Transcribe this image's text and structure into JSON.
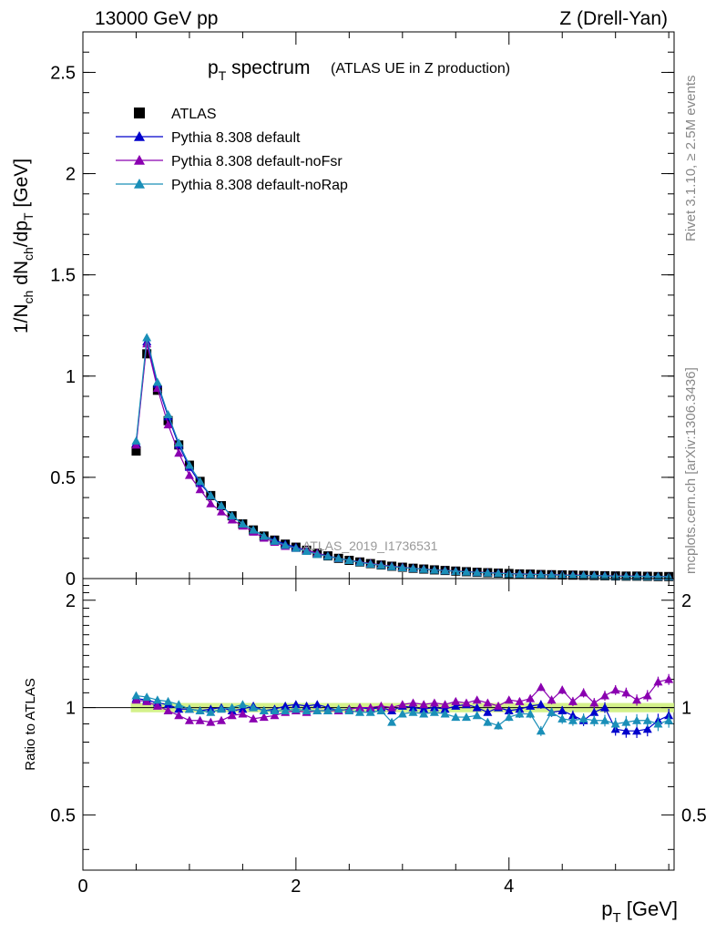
{
  "header": {
    "energy": "13000 GeV pp",
    "process": "Z (Drell-Yan)"
  },
  "side_labels": {
    "rivet": "Rivet 3.1.10, ≥ 2.5M events",
    "mcplots": "mcplots.cern.ch [arXiv:1306.3436]"
  },
  "chart_data": [
    {
      "type": "scatter",
      "panel": "main",
      "title_main": "p",
      "title_sub": "T",
      "title_rest": " spectrum",
      "title_paren": "(ATLAS UE in Z production)",
      "analysis_tag": "ATLAS_2019_I1736531",
      "ylabel": "1/N_ch dN_ch/dp_T [GeV]",
      "xlim": [
        0,
        5.55
      ],
      "ylim": [
        0,
        2.7
      ],
      "yticks": [
        "0",
        "0.5",
        "1",
        "1.5",
        "2",
        "2.5"
      ],
      "ytick_values": [
        0,
        0.5,
        1,
        1.5,
        2,
        2.5
      ],
      "grid": false,
      "legend_position": "top-left",
      "x": [
        0.5,
        0.6,
        0.7,
        0.8,
        0.9,
        1.0,
        1.1,
        1.2,
        1.3,
        1.4,
        1.5,
        1.6,
        1.7,
        1.8,
        1.9,
        2.0,
        2.1,
        2.2,
        2.3,
        2.4,
        2.5,
        2.6,
        2.7,
        2.8,
        2.9,
        3.0,
        3.1,
        3.2,
        3.3,
        3.4,
        3.5,
        3.6,
        3.7,
        3.8,
        3.9,
        4.0,
        4.1,
        4.2,
        4.3,
        4.4,
        4.5,
        4.6,
        4.7,
        4.8,
        4.9,
        5.0,
        5.1,
        5.2,
        5.3,
        5.4,
        5.5
      ],
      "series": [
        {
          "name": "ATLAS",
          "color": "#000000",
          "marker": "square",
          "values": [
            0.63,
            1.11,
            0.93,
            0.78,
            0.66,
            0.56,
            0.48,
            0.41,
            0.36,
            0.31,
            0.27,
            0.24,
            0.21,
            0.19,
            0.17,
            0.155,
            0.14,
            0.125,
            0.112,
            0.1,
            0.09,
            0.082,
            0.074,
            0.067,
            0.061,
            0.056,
            0.051,
            0.047,
            0.043,
            0.04,
            0.037,
            0.034,
            0.031,
            0.029,
            0.027,
            0.025,
            0.023,
            0.022,
            0.02,
            0.019,
            0.018,
            0.017,
            0.016,
            0.015,
            0.014,
            0.013,
            0.012,
            0.012,
            0.011,
            0.01,
            0.01
          ]
        },
        {
          "name": "Pythia 8.308 default",
          "color": "#0000cc",
          "marker": "triangle",
          "values": [
            0.67,
            1.17,
            0.96,
            0.8,
            0.66,
            0.55,
            0.47,
            0.41,
            0.36,
            0.31,
            0.27,
            0.24,
            0.21,
            0.19,
            0.17,
            0.155,
            0.14,
            0.125,
            0.112,
            0.1,
            0.09,
            0.082,
            0.074,
            0.067,
            0.061,
            0.056,
            0.051,
            0.047,
            0.043,
            0.04,
            0.037,
            0.034,
            0.031,
            0.029,
            0.027,
            0.025,
            0.023,
            0.022,
            0.02,
            0.019,
            0.018,
            0.017,
            0.016,
            0.015,
            0.014,
            0.013,
            0.012,
            0.012,
            0.011,
            0.01,
            0.01
          ]
        },
        {
          "name": "Pythia 8.308 default-noFsr",
          "color": "#8a00b0",
          "marker": "triangle",
          "values": [
            0.66,
            1.16,
            0.94,
            0.76,
            0.62,
            0.51,
            0.44,
            0.37,
            0.33,
            0.29,
            0.26,
            0.23,
            0.2,
            0.18,
            0.16,
            0.15,
            0.14,
            0.125,
            0.11,
            0.1,
            0.09,
            0.082,
            0.074,
            0.067,
            0.061,
            0.056,
            0.051,
            0.047,
            0.043,
            0.04,
            0.037,
            0.034,
            0.031,
            0.029,
            0.027,
            0.025,
            0.023,
            0.022,
            0.02,
            0.019,
            0.018,
            0.017,
            0.016,
            0.015,
            0.014,
            0.013,
            0.012,
            0.012,
            0.011,
            0.01,
            0.01
          ]
        },
        {
          "name": "Pythia 8.308 default-noRap",
          "color": "#1a8fb8",
          "marker": "triangle",
          "values": [
            0.68,
            1.19,
            0.97,
            0.81,
            0.67,
            0.56,
            0.48,
            0.41,
            0.36,
            0.31,
            0.27,
            0.24,
            0.21,
            0.185,
            0.165,
            0.15,
            0.135,
            0.12,
            0.11,
            0.1,
            0.09,
            0.08,
            0.072,
            0.065,
            0.059,
            0.054,
            0.05,
            0.046,
            0.042,
            0.039,
            0.036,
            0.033,
            0.03,
            0.028,
            0.026,
            0.024,
            0.022,
            0.021,
            0.019,
            0.018,
            0.017,
            0.016,
            0.015,
            0.014,
            0.013,
            0.012,
            0.011,
            0.011,
            0.01,
            0.0095,
            0.0095
          ]
        }
      ]
    },
    {
      "type": "scatter",
      "panel": "ratio",
      "ylabel": "Ratio to ATLAS",
      "xlabel_main": "p",
      "xlabel_sub": "T",
      "xlabel_rest": " [GeV]",
      "xlim": [
        0,
        5.55
      ],
      "ylim": [
        0.35,
        2.3
      ],
      "xticks": [
        "0",
        "2",
        "4"
      ],
      "xtick_values": [
        0,
        2,
        4
      ],
      "yticks": [
        "0.5",
        "1",
        "2"
      ],
      "ytick_values": [
        0.5,
        1,
        2
      ],
      "reference_band": [
        0.97,
        1.03
      ],
      "x": [
        0.5,
        0.6,
        0.7,
        0.8,
        0.9,
        1.0,
        1.1,
        1.2,
        1.3,
        1.4,
        1.5,
        1.6,
        1.7,
        1.8,
        1.9,
        2.0,
        2.1,
        2.2,
        2.3,
        2.4,
        2.5,
        2.6,
        2.7,
        2.8,
        2.9,
        3.0,
        3.1,
        3.2,
        3.3,
        3.4,
        3.5,
        3.6,
        3.7,
        3.8,
        3.9,
        4.0,
        4.1,
        4.2,
        4.3,
        4.4,
        4.5,
        4.6,
        4.7,
        4.8,
        4.9,
        5.0,
        5.1,
        5.2,
        5.3,
        5.4,
        5.5
      ],
      "series": [
        {
          "name": "Pythia 8.308 default",
          "color": "#0000cc",
          "values": [
            1.06,
            1.05,
            1.03,
            1.02,
            0.99,
            0.99,
            0.98,
            0.99,
            1.0,
            0.98,
            0.99,
            1.01,
            0.98,
            0.99,
            1.01,
            1.02,
            1.01,
            1.02,
            1.0,
            0.98,
            0.99,
            1.0,
            0.99,
            1.0,
            0.98,
            1.01,
            1.0,
            0.99,
            1.0,
            0.99,
            1.01,
            1.02,
            1.0,
            0.97,
            1.0,
            0.98,
            0.99,
            1.01,
            1.02,
            0.97,
            0.98,
            0.95,
            0.92,
            0.97,
            1.0,
            0.87,
            0.86,
            0.86,
            0.87,
            0.92,
            0.95
          ]
        },
        {
          "name": "Pythia 8.308 default-noFsr",
          "color": "#8a00b0",
          "values": [
            1.05,
            1.04,
            1.01,
            0.98,
            0.95,
            0.92,
            0.92,
            0.91,
            0.92,
            0.95,
            0.96,
            0.93,
            0.94,
            0.95,
            0.97,
            0.98,
            0.97,
            0.98,
            0.98,
            0.98,
            0.99,
            1.0,
            1.0,
            1.01,
            1.0,
            1.02,
            1.03,
            1.02,
            1.03,
            1.02,
            1.04,
            1.03,
            1.05,
            1.03,
            1.01,
            1.05,
            1.04,
            1.06,
            1.14,
            1.05,
            1.12,
            1.04,
            1.1,
            1.03,
            1.08,
            1.12,
            1.1,
            1.05,
            1.08,
            1.18,
            1.2
          ]
        },
        {
          "name": "Pythia 8.308 default-noRap",
          "color": "#1a8fb8",
          "values": [
            1.08,
            1.07,
            1.05,
            1.04,
            1.02,
            0.99,
            0.98,
            0.97,
            0.99,
            1.0,
            1.02,
            1.0,
            0.98,
            0.98,
            0.98,
            0.99,
            0.98,
            0.98,
            0.98,
            0.99,
            0.98,
            0.97,
            0.97,
            0.98,
            0.91,
            0.96,
            0.97,
            0.96,
            0.97,
            0.96,
            0.94,
            0.94,
            0.95,
            0.91,
            0.89,
            0.94,
            0.96,
            0.96,
            0.86,
            0.97,
            0.93,
            0.92,
            0.93,
            0.92,
            0.92,
            0.9,
            0.91,
            0.92,
            0.92,
            0.9,
            0.92
          ]
        }
      ]
    }
  ]
}
